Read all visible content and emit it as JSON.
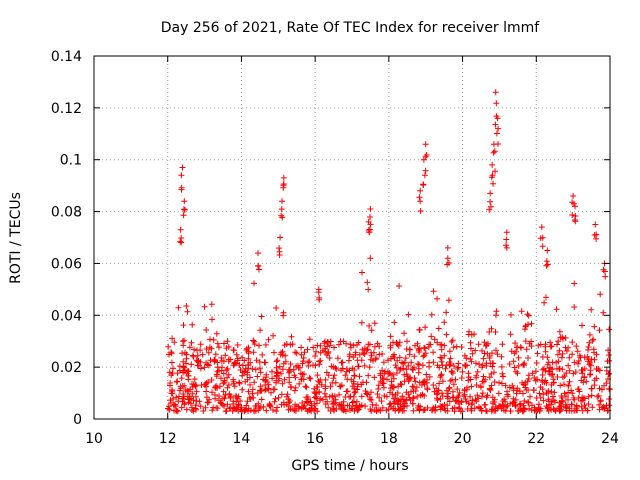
{
  "chart_data": {
    "type": "scatter",
    "title": "Day 256 of 2021, Rate Of TEC Index for receiver lmmf",
    "xlabel": "GPS time / hours",
    "ylabel": "ROTI / TECUs",
    "xlim": [
      10,
      24
    ],
    "ylim": [
      0,
      0.14
    ],
    "xticks": [
      "10",
      "12",
      "14",
      "16",
      "18",
      "20",
      "22",
      "24"
    ],
    "yticks": [
      "0",
      "0.02",
      "0.04",
      "0.06",
      "0.08",
      "0.1",
      "0.12",
      "0.14"
    ],
    "grid": true,
    "marker": "+",
    "color": "#ff0000",
    "data_range_hours": [
      12,
      24
    ],
    "series": [
      {
        "name": "ROTI",
        "baseline_range": [
          0.003,
          0.03
        ],
        "notable_peaks": [
          {
            "x": 12.4,
            "y": 0.097
          },
          {
            "x": 12.45,
            "y": 0.084
          },
          {
            "x": 12.35,
            "y": 0.073
          },
          {
            "x": 14.45,
            "y": 0.064
          },
          {
            "x": 15.15,
            "y": 0.093
          },
          {
            "x": 15.1,
            "y": 0.084
          },
          {
            "x": 15.05,
            "y": 0.07
          },
          {
            "x": 16.1,
            "y": 0.05
          },
          {
            "x": 17.5,
            "y": 0.081
          },
          {
            "x": 17.45,
            "y": 0.076
          },
          {
            "x": 18.85,
            "y": 0.088
          },
          {
            "x": 19.0,
            "y": 0.106
          },
          {
            "x": 18.95,
            "y": 0.1
          },
          {
            "x": 19.6,
            "y": 0.066
          },
          {
            "x": 20.9,
            "y": 0.126
          },
          {
            "x": 20.95,
            "y": 0.116
          },
          {
            "x": 20.85,
            "y": 0.106
          },
          {
            "x": 20.8,
            "y": 0.098
          },
          {
            "x": 20.75,
            "y": 0.087
          },
          {
            "x": 21.2,
            "y": 0.072
          },
          {
            "x": 22.15,
            "y": 0.074
          },
          {
            "x": 22.3,
            "y": 0.065
          },
          {
            "x": 23.0,
            "y": 0.086
          },
          {
            "x": 23.05,
            "y": 0.082
          },
          {
            "x": 23.6,
            "y": 0.075
          },
          {
            "x": 23.85,
            "y": 0.06
          }
        ]
      }
    ]
  }
}
